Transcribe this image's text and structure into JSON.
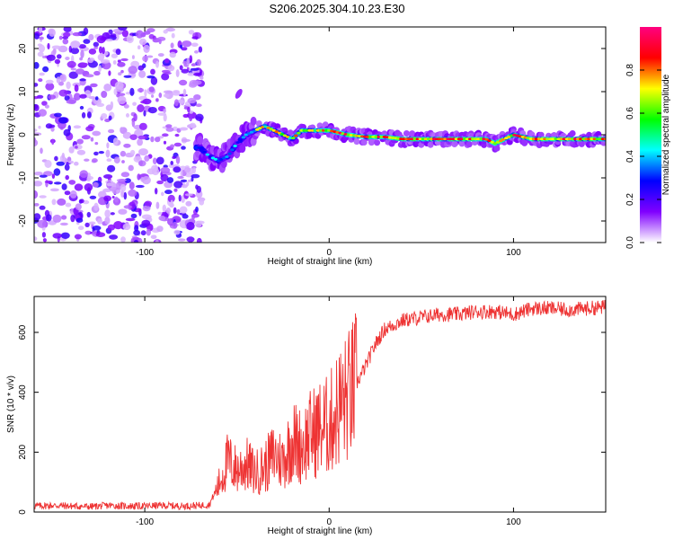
{
  "title": "S206.2025.304.10.23.E30",
  "chart_data": [
    {
      "type": "heatmap",
      "xlabel": "Height of straight line (km)",
      "ylabel": "Frequency (Hz)",
      "xlim": [
        -160,
        150
      ],
      "ylim": [
        -25,
        25
      ],
      "xticks": [
        -100,
        0,
        100
      ],
      "yticks": [
        -20,
        -10,
        0,
        10,
        20
      ],
      "grid": false,
      "colorbar": {
        "label": "Normalized spectral amplitude",
        "range": [
          0,
          1
        ],
        "ticks": [
          "0.0",
          "0.2",
          "0.4",
          "0.6",
          "0.8"
        ],
        "colors": [
          "#ffffff",
          "#8000ff",
          "#0000ff",
          "#00ffff",
          "#00ff00",
          "#ffff00",
          "#ff0000",
          "#ff0080"
        ]
      },
      "noise_region_x": [
        -160,
        -73
      ],
      "ridge": {
        "x": [
          -70,
          -65,
          -60,
          -55,
          -50,
          -45,
          -40,
          -35,
          -30,
          -25,
          -20,
          -15,
          -10,
          -5,
          0,
          10,
          20,
          30,
          40,
          60,
          80,
          85,
          90,
          95,
          100,
          110,
          120,
          130,
          140,
          150
        ],
        "y": [
          -3,
          -5,
          -6,
          -5,
          -2,
          0,
          1,
          2,
          1,
          0,
          -1,
          1,
          1,
          1,
          1,
          0,
          -0.5,
          -0.5,
          -1,
          -1,
          -1,
          -1,
          -2,
          -1,
          0,
          -1,
          -1,
          -1,
          -1,
          -1
        ]
      }
    },
    {
      "type": "line",
      "xlabel": "Height of straight line (km)",
      "ylabel": "SNR (10 * v/v)",
      "xlim": [
        -160,
        150
      ],
      "ylim": [
        0,
        720
      ],
      "xticks": [
        -100,
        0,
        100
      ],
      "yticks": [
        0,
        200,
        400,
        600
      ],
      "color": "#ee3333",
      "grid": false,
      "series": [
        {
          "name": "SNR",
          "x": [
            -160,
            -150,
            -140,
            -130,
            -120,
            -110,
            -100,
            -90,
            -80,
            -70,
            -65,
            -60,
            -55,
            -50,
            -45,
            -40,
            -35,
            -30,
            -25,
            -20,
            -15,
            -10,
            -5,
            0,
            5,
            10,
            15,
            20,
            25,
            30,
            40,
            50,
            60,
            70,
            80,
            90,
            100,
            110,
            120,
            130,
            140,
            150
          ],
          "y": [
            20,
            22,
            20,
            18,
            22,
            20,
            20,
            22,
            20,
            22,
            25,
            90,
            170,
            140,
            160,
            130,
            150,
            190,
            170,
            240,
            220,
            260,
            280,
            290,
            350,
            380,
            430,
            490,
            560,
            610,
            640,
            650,
            660,
            660,
            670,
            670,
            660,
            680,
            680,
            675,
            680,
            685
          ]
        }
      ]
    }
  ]
}
